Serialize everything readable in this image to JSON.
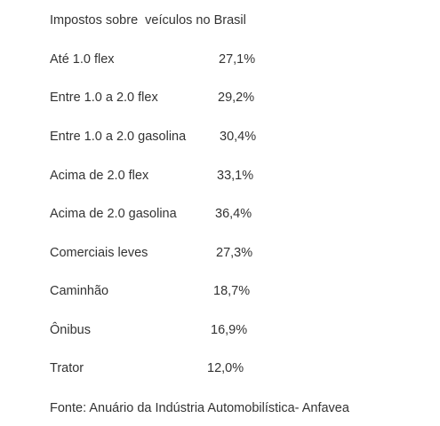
{
  "title": "Impostos sobre  veículos no Brasil",
  "rows": [
    {
      "label": "Até 1.0 flex",
      "value": "27,1%"
    },
    {
      "label": "Entre 1.0 a 2.0 flex",
      "value": "29,2%"
    },
    {
      "label": "Entre 1.0 a 2.0 gasolina",
      "value": "30,4%"
    },
    {
      "label": "Acima de 2.0 flex",
      "value": "33,1%"
    },
    {
      "label": "Acima de 2.0 gasolina",
      "value": "36,4%"
    },
    {
      "label": "Comerciais leves",
      "value": "27,3%"
    },
    {
      "label": "Caminhão",
      "value": "18,7%"
    },
    {
      "label": "Ônibus",
      "value": "16,9%"
    },
    {
      "label": "Trator",
      "value": "12,0%"
    }
  ],
  "source": "Fonte: Anuário da Indústria Automobilística- Anfavea"
}
